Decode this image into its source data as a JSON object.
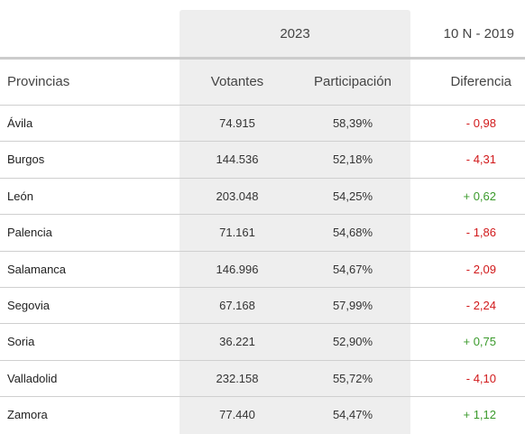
{
  "years": {
    "current": "2023",
    "previous": "10 N - 2019"
  },
  "headers": {
    "province": "Provincias",
    "voters": "Votantes",
    "participation": "Participación",
    "difference": "Diferencia"
  },
  "colors": {
    "negative": "#d1191b",
    "positive": "#3a9a2b",
    "highlight": "#eeeeee"
  },
  "rows": [
    {
      "province": "Ávila",
      "voters": "74.915",
      "participation": "58,39%",
      "difference": "- 0,98",
      "trend": "neg"
    },
    {
      "province": "Burgos",
      "voters": "144.536",
      "participation": "52,18%",
      "difference": "- 4,31",
      "trend": "neg"
    },
    {
      "province": "León",
      "voters": "203.048",
      "participation": "54,25%",
      "difference": "+ 0,62",
      "trend": "pos"
    },
    {
      "province": "Palencia",
      "voters": "71.161",
      "participation": "54,68%",
      "difference": "- 1,86",
      "trend": "neg"
    },
    {
      "province": "Salamanca",
      "voters": "146.996",
      "participation": "54,67%",
      "difference": "- 2,09",
      "trend": "neg"
    },
    {
      "province": "Segovia",
      "voters": "67.168",
      "participation": "57,99%",
      "difference": "- 2,24",
      "trend": "neg"
    },
    {
      "province": "Soria",
      "voters": "36.221",
      "participation": "52,90%",
      "difference": "+ 0,75",
      "trend": "pos"
    },
    {
      "province": "Valladolid",
      "voters": "232.158",
      "participation": "55,72%",
      "difference": "- 4,10",
      "trend": "neg"
    },
    {
      "province": "Zamora",
      "voters": "77.440",
      "participation": "54,47%",
      "difference": "+ 1,12",
      "trend": "pos"
    }
  ]
}
